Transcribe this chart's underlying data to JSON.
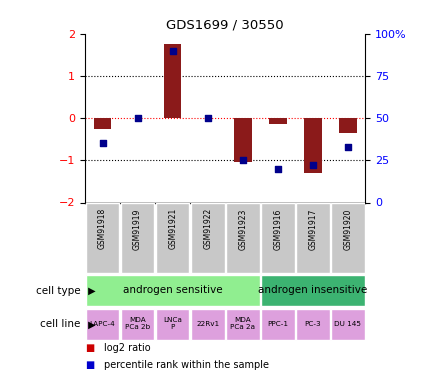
{
  "title": "GDS1699 / 30550",
  "samples": [
    "GSM91918",
    "GSM91919",
    "GSM91921",
    "GSM91922",
    "GSM91923",
    "GSM91916",
    "GSM91917",
    "GSM91920"
  ],
  "log2_ratio": [
    -0.25,
    0.0,
    1.75,
    0.0,
    -1.05,
    -0.15,
    -1.3,
    -0.35
  ],
  "percentile": [
    35,
    50,
    90,
    50,
    25,
    20,
    22,
    33
  ],
  "ylim_left": [
    -2,
    2
  ],
  "ylim_right": [
    0,
    100
  ],
  "yticks_left": [
    -2,
    -1,
    0,
    1,
    2
  ],
  "yticks_right": [
    0,
    25,
    50,
    75,
    100
  ],
  "ytick_labels_right": [
    "0",
    "25",
    "50",
    "75",
    "100%"
  ],
  "cell_type_groups": [
    {
      "label": "androgen sensitive",
      "start": 0,
      "end": 4,
      "color": "#90EE90"
    },
    {
      "label": "androgen insensitive",
      "start": 5,
      "end": 7,
      "color": "#3CB371"
    }
  ],
  "cell_lines": [
    "LAPC-4",
    "MDA\nPCa 2b",
    "LNCa\nP",
    "22Rv1",
    "MDA\nPCa 2a",
    "PPC-1",
    "PC-3",
    "DU 145"
  ],
  "cell_line_color": "#DDA0DD",
  "bar_color": "#8B1A1A",
  "dot_color": "#00008B",
  "legend_bar_color": "#CC0000",
  "legend_dot_color": "#0000CC",
  "zero_line_color": "#FF0000",
  "sample_bg_color": "#C8C8C8",
  "bar_width": 0.5
}
